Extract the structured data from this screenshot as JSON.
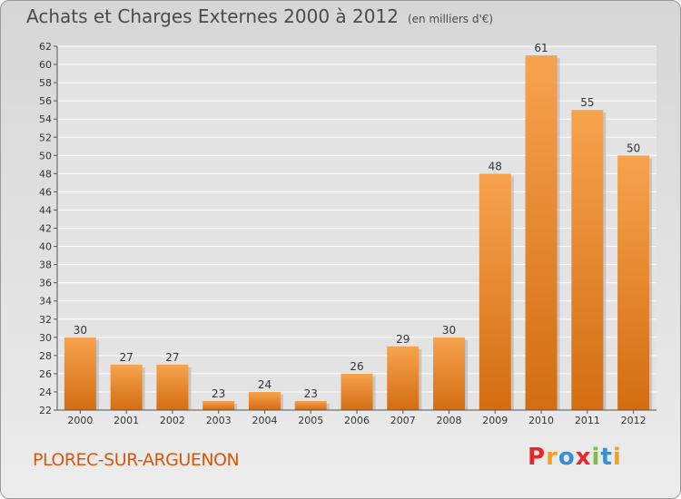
{
  "title": "Achats et Charges Externes 2000 à 2012",
  "subtitle": "(en milliers d'€)",
  "commune": "PLOREC-SUR-ARGUENON",
  "logo_text": "Proxiti",
  "colors": {
    "bar_top": "#f7a34e",
    "bar_bottom": "#d36d12",
    "commune_text": "#d45a12",
    "logo": [
      "#e8272c",
      "#f6a11d",
      "#3a8fd4",
      "#e8272c",
      "#7fbf3f",
      "#3a8fd4",
      "#f6a11d"
    ]
  },
  "chart_data": {
    "type": "bar",
    "categories": [
      "2000",
      "2001",
      "2002",
      "2003",
      "2004",
      "2005",
      "2006",
      "2007",
      "2008",
      "2009",
      "2010",
      "2011",
      "2012"
    ],
    "values": [
      30,
      27,
      27,
      23,
      24,
      23,
      26,
      29,
      30,
      48,
      61,
      55,
      50
    ],
    "data_labels": [
      "30",
      "27",
      "27",
      "23",
      "24",
      "23",
      "26",
      "29",
      "30",
      "48",
      "61",
      "55",
      "50"
    ],
    "ylim": [
      22,
      62
    ],
    "yticks": [
      22,
      24,
      26,
      28,
      30,
      32,
      34,
      36,
      38,
      40,
      42,
      44,
      46,
      48,
      50,
      52,
      54,
      56,
      58,
      60,
      62
    ],
    "grid": true
  }
}
